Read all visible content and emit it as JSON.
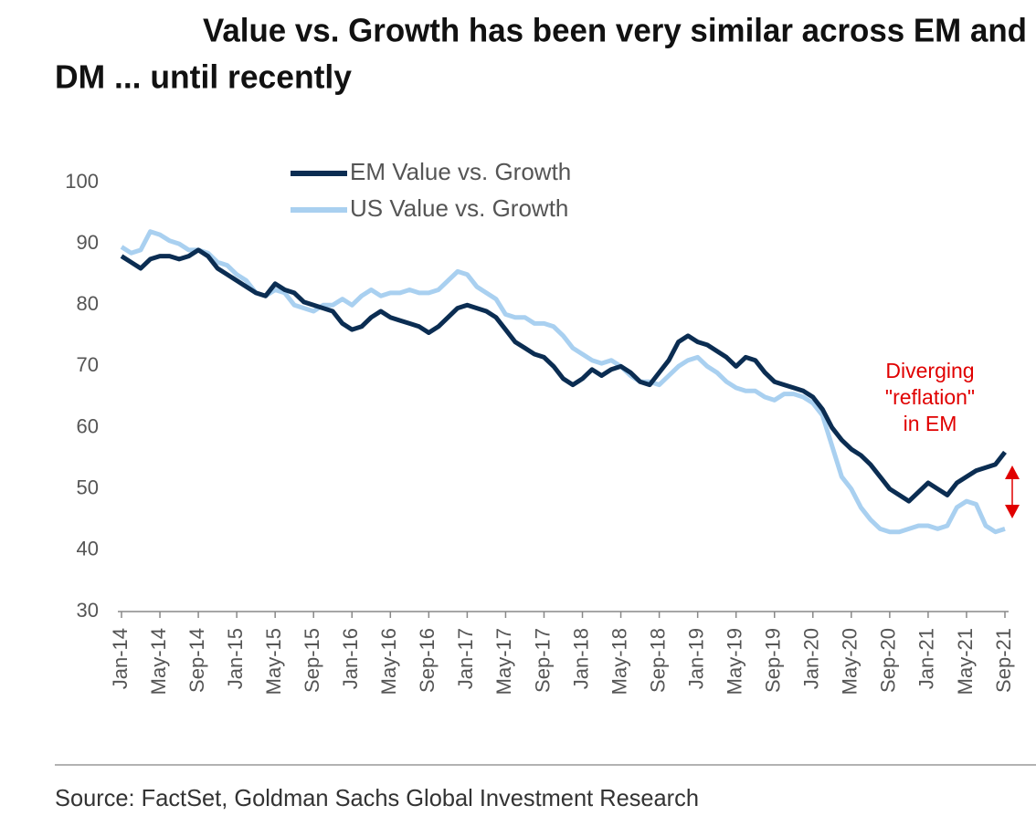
{
  "chart_data": {
    "type": "line",
    "title": [
      "Value vs. Growth has been very similar across EM and",
      "DM ... until recently"
    ],
    "source": "Source: FactSet, Goldman Sachs Global Investment Research",
    "annotation": [
      "Diverging",
      "\"reflation\"",
      "in EM"
    ],
    "categories": [
      "Jan-14",
      null,
      null,
      null,
      "May-14",
      null,
      null,
      null,
      "Sep-14",
      null,
      null,
      null,
      "Jan-15",
      null,
      null,
      null,
      "May-15",
      null,
      null,
      null,
      "Sep-15",
      null,
      null,
      null,
      "Jan-16",
      null,
      null,
      null,
      "May-16",
      null,
      null,
      null,
      "Sep-16",
      null,
      null,
      null,
      "Jan-17",
      null,
      null,
      null,
      "May-17",
      null,
      null,
      null,
      "Sep-17",
      null,
      null,
      null,
      "Jan-18",
      null,
      null,
      null,
      "May-18",
      null,
      null,
      null,
      "Sep-18",
      null,
      null,
      null,
      "Jan-19",
      null,
      null,
      null,
      "May-19",
      null,
      null,
      null,
      "Sep-19",
      null,
      null,
      null,
      "Jan-20",
      null,
      null,
      null,
      "May-20",
      null,
      null,
      null,
      "Sep-20",
      null,
      null,
      null,
      "Jan-21",
      null,
      null,
      null,
      "May-21",
      null,
      null,
      null,
      "Sep-21"
    ],
    "series": [
      {
        "name": "EM Value vs. Growth",
        "color": "#0b2d52",
        "values": [
          88,
          87,
          86,
          87.5,
          88,
          88,
          87.5,
          88,
          89,
          88,
          86,
          85,
          84,
          83,
          82,
          81.5,
          83.5,
          82.5,
          82,
          80.5,
          80,
          79.5,
          79,
          77,
          76,
          76.5,
          78,
          79,
          78,
          77.5,
          77,
          76.5,
          75.5,
          76.5,
          78,
          79.5,
          80,
          79.5,
          79,
          78,
          76,
          74,
          73,
          72,
          71.5,
          70,
          68,
          67,
          68,
          69.5,
          68.5,
          69.5,
          70,
          69,
          67.5,
          67,
          69,
          71,
          74,
          75,
          74,
          73.5,
          72.5,
          71.5,
          70,
          71.5,
          71,
          69,
          67.5,
          67,
          66.5,
          66,
          65,
          63,
          60,
          58,
          56.5,
          55.5,
          54,
          52,
          50,
          49,
          48,
          49.5,
          51,
          50,
          49,
          51,
          52,
          53,
          53.5,
          54,
          56
        ]
      },
      {
        "name": "US Value vs. Growth",
        "color": "#a9d0f0",
        "values": [
          89.5,
          88.5,
          89,
          92,
          91.5,
          90.5,
          90,
          89,
          89,
          88.5,
          87,
          86.5,
          85,
          84,
          82,
          81.5,
          82.5,
          82,
          80,
          79.5,
          79,
          80,
          80,
          81,
          80,
          81.5,
          82.5,
          81.5,
          82,
          82,
          82.5,
          82,
          82,
          82.5,
          84,
          85.5,
          85,
          83,
          82,
          81,
          78.5,
          78,
          78,
          77,
          77,
          76.5,
          75,
          73,
          72,
          71,
          70.5,
          71,
          70,
          68.5,
          67.5,
          67.5,
          67,
          68.5,
          70,
          71,
          71.5,
          70,
          69,
          67.5,
          66.5,
          66,
          66,
          65,
          64.5,
          65.5,
          65.5,
          65,
          64,
          62,
          57,
          52,
          50,
          47,
          45,
          43.5,
          43,
          43,
          43.5,
          44,
          44,
          43.5,
          44,
          47,
          48,
          47.5,
          44,
          43,
          43.5
        ]
      }
    ],
    "ylim": [
      30,
      100
    ],
    "yticks": [
      30,
      40,
      50,
      60,
      70,
      80,
      90,
      100
    ]
  }
}
